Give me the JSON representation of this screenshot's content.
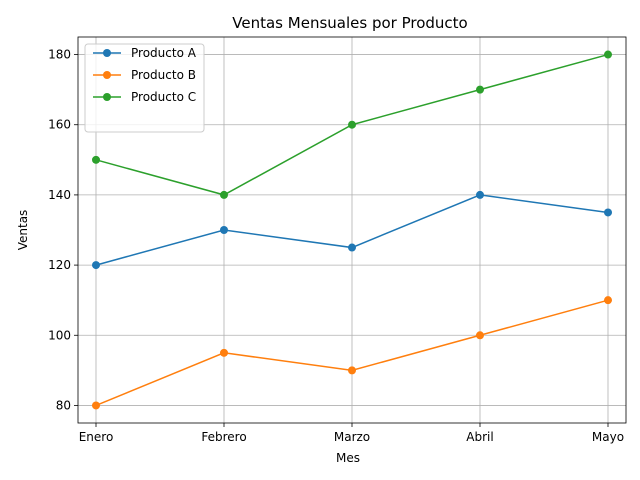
{
  "chart_data": {
    "type": "line",
    "title": "Ventas Mensuales por Producto",
    "xlabel": "Mes",
    "ylabel": "Ventas",
    "categories": [
      "Enero",
      "Febrero",
      "Marzo",
      "Abril",
      "Mayo"
    ],
    "ylim": [
      75,
      185
    ],
    "yticks": [
      80,
      100,
      120,
      140,
      160,
      180
    ],
    "grid": true,
    "legend_position": "top-left",
    "series": [
      {
        "name": "Producto A",
        "color": "#1f77b4",
        "values": [
          120,
          130,
          125,
          140,
          135
        ]
      },
      {
        "name": "Producto B",
        "color": "#ff7f0e",
        "values": [
          80,
          95,
          90,
          100,
          110
        ]
      },
      {
        "name": "Producto C",
        "color": "#2ca02c",
        "values": [
          150,
          140,
          160,
          170,
          180
        ]
      }
    ]
  }
}
